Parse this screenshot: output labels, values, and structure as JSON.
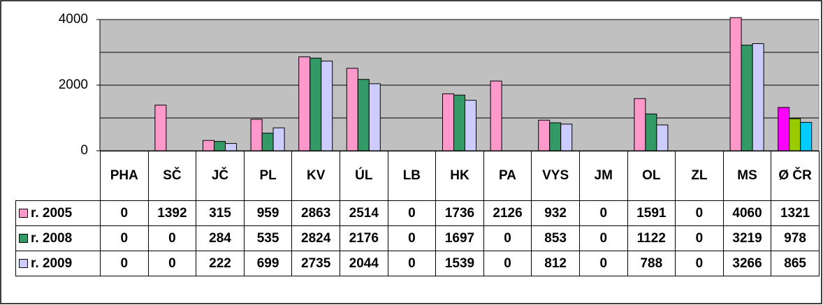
{
  "chart_data": {
    "type": "bar",
    "categories": [
      "PHA",
      "SČ",
      "JČ",
      "PL",
      "KV",
      "ÚL",
      "LB",
      "HK",
      "PA",
      "VYS",
      "JM",
      "OL",
      "ZL",
      "MS",
      "Ø ČR"
    ],
    "series": [
      {
        "name": "r. 2005",
        "color": "#ff99cc",
        "last_color": "#ff00ff",
        "values": [
          0,
          1392,
          315,
          959,
          2863,
          2514,
          0,
          1736,
          2126,
          932,
          0,
          1591,
          0,
          4060,
          1321
        ]
      },
      {
        "name": "r. 2008",
        "color": "#339966",
        "last_color": "#99cc00",
        "values": [
          0,
          0,
          284,
          535,
          2824,
          2176,
          0,
          1697,
          0,
          853,
          0,
          1122,
          0,
          3219,
          978
        ]
      },
      {
        "name": "r. 2009",
        "color": "#ccccff",
        "last_color": "#00ccff",
        "values": [
          0,
          0,
          222,
          699,
          2735,
          2044,
          0,
          1539,
          0,
          812,
          0,
          788,
          0,
          3266,
          865
        ]
      }
    ],
    "ylim": [
      0,
      4000
    ],
    "yticks": [
      0,
      2000,
      4000
    ],
    "minor_yticks": [
      1000,
      3000
    ],
    "grid": true
  }
}
